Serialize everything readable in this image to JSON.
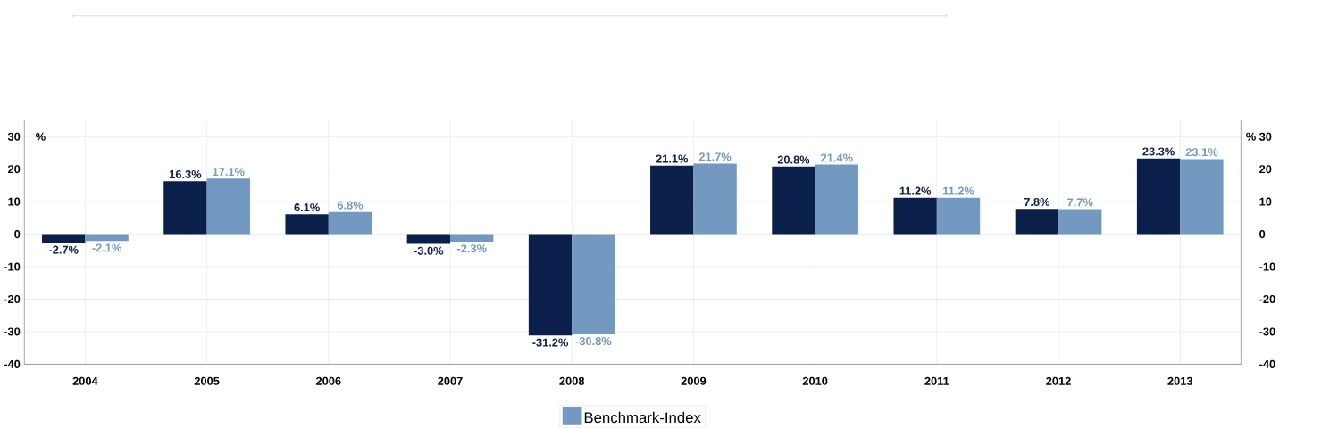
{
  "chart_data": {
    "type": "bar",
    "categories": [
      "2004",
      "2005",
      "2006",
      "2007",
      "2008",
      "2009",
      "2010",
      "2011",
      "2012",
      "2013"
    ],
    "series": [
      {
        "color": "#0b1f4b",
        "values": [
          -2.7,
          16.3,
          6.1,
          -3.0,
          -31.2,
          21.1,
          20.8,
          11.2,
          7.8,
          23.3
        ],
        "value_labels": [
          "-2.7%",
          "16.3%",
          "6.1%",
          "-3.0%",
          "-31.2%",
          "21.1%",
          "20.8%",
          "11.2%",
          "7.8%",
          "23.3%"
        ]
      },
      {
        "name": "Benchmark-Index",
        "color": "#7399c0",
        "values": [
          -2.1,
          17.1,
          6.8,
          -2.3,
          -30.8,
          21.7,
          21.4,
          11.2,
          7.7,
          23.1
        ],
        "value_labels": [
          "-2.1%",
          "17.1%",
          "6.8%",
          "-2.3%",
          "-30.8%",
          "21.7%",
          "21.4%",
          "11.2%",
          "7.7%",
          "23.1%"
        ]
      }
    ],
    "ylim": [
      -40,
      35
    ],
    "yticks": [
      -40,
      -30,
      -20,
      -10,
      0,
      10,
      20,
      30
    ],
    "y2lim": [
      -40,
      35
    ],
    "y2ticks": [
      -40,
      -30,
      -20,
      -10,
      0,
      10,
      20,
      30
    ],
    "ylabel": "%",
    "y2label": "%",
    "grid": true,
    "legend": "bottom"
  }
}
